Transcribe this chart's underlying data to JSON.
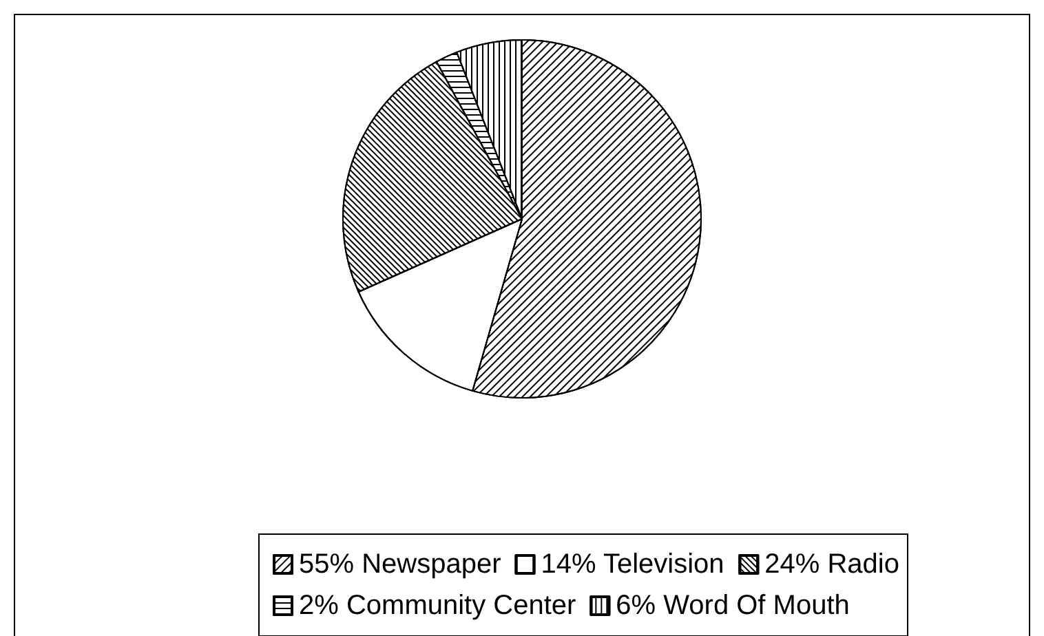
{
  "chart_data": {
    "type": "pie",
    "categories": [
      "Newspaper",
      "Television",
      "Radio",
      "Community Center",
      "Word Of Mouth"
    ],
    "values": [
      55,
      14,
      24,
      2,
      6
    ],
    "value_labels": [
      "55%",
      "14%",
      "24%",
      "2%",
      "6%"
    ],
    "colors": [
      "#ffffff",
      "#ffffff",
      "#ffffff",
      "#ffffff",
      "#ffffff"
    ],
    "legend": "bottom"
  }
}
